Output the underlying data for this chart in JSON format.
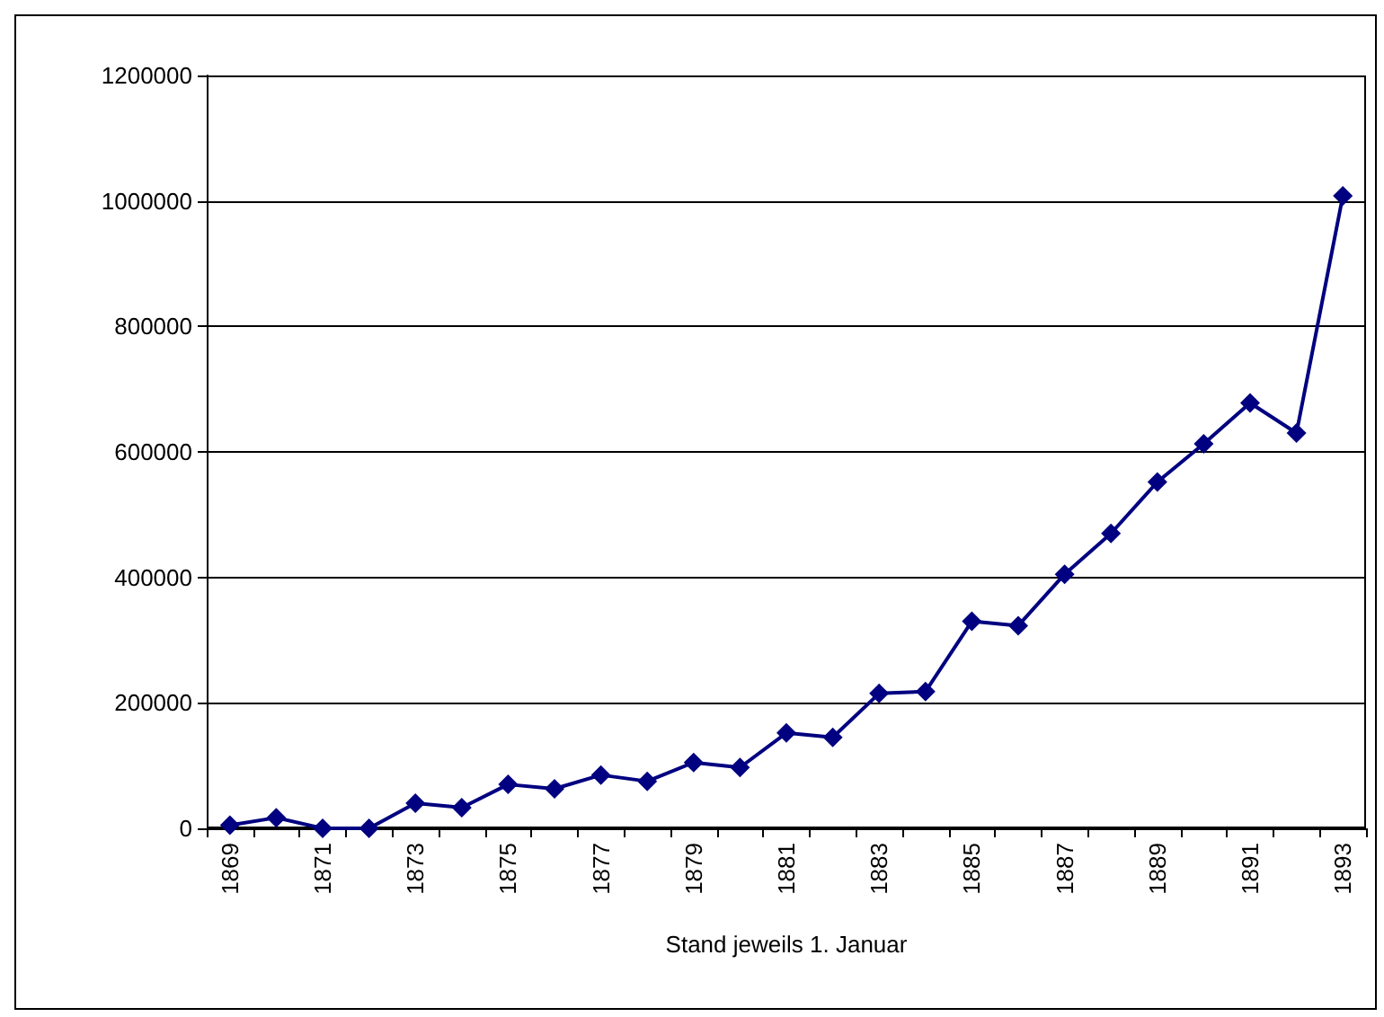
{
  "chart_data": {
    "type": "line",
    "xlabel": "Stand jeweils 1. Januar",
    "categories": [
      "1869",
      null,
      "1871",
      null,
      "1873",
      null,
      "1875",
      null,
      "1877",
      null,
      "1879",
      null,
      "1881",
      null,
      "1883",
      null,
      "1885",
      null,
      "1887",
      null,
      "1889",
      null,
      "1891",
      null,
      "1893"
    ],
    "series": [
      {
        "color": "#000080",
        "values": [
          5000,
          17000,
          0,
          0,
          40000,
          33000,
          70000,
          63000,
          85000,
          75000,
          105000,
          97000,
          152000,
          145000,
          215000,
          218000,
          330000,
          323000,
          405000,
          470000,
          552000,
          613000,
          678000,
          630000,
          1008000
        ]
      }
    ],
    "ylim": [
      0,
      1200000
    ],
    "yticks": [
      0,
      200000,
      400000,
      600000,
      800000,
      1000000,
      1200000
    ],
    "grid": "y",
    "marker": "diamond",
    "line_style": "solid"
  }
}
